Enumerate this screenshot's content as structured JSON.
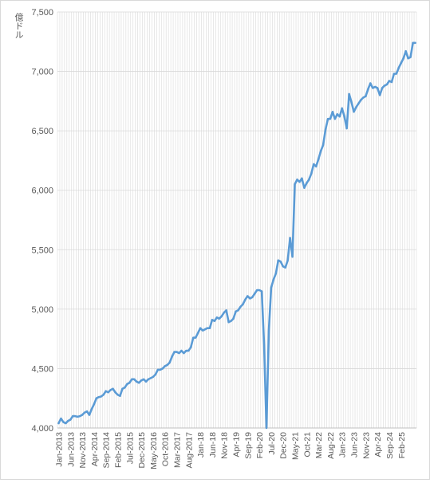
{
  "chart_data": {
    "type": "line",
    "ylabel": "億ドル",
    "ylim": [
      4000,
      7500
    ],
    "yticks": [
      4000,
      4500,
      5000,
      5500,
      6000,
      6500,
      7000,
      7500
    ],
    "ytick_labels": [
      "4,000",
      "4,500",
      "5,000",
      "5,500",
      "6,000",
      "6,500",
      "7,000",
      "7,500"
    ],
    "xtick_labels": [
      "Jan-2013",
      "Jun-2013",
      "Nov-2013",
      "Apr-2014",
      "Sep-2014",
      "Feb-2015",
      "Jul-2015",
      "Dec-2015",
      "May-2016",
      "Oct-2016",
      "Mar-2017",
      "Aug-2017",
      "Jan-18",
      "Jun-18",
      "Nov-18",
      "Apr-19",
      "Sep-19",
      "Feb-20",
      "Jul-20",
      "Dec-20",
      "May-21",
      "Oct-21",
      "Mar-22",
      "Aug-22",
      "Jan-23",
      "Jun-23",
      "Nov-23",
      "Apr-24",
      "Sep-24",
      "Feb-25"
    ],
    "x_start": "Jan-2013",
    "x_end": "Jun-25",
    "x_step": "monthly",
    "grid": "vertical-minor-and-horizontal",
    "line_color": "#5b9bd5",
    "values": [
      4040,
      4080,
      4050,
      4040,
      4060,
      4070,
      4100,
      4100,
      4095,
      4100,
      4110,
      4130,
      4140,
      4110,
      4160,
      4200,
      4250,
      4260,
      4265,
      4280,
      4310,
      4300,
      4320,
      4330,
      4300,
      4280,
      4270,
      4330,
      4340,
      4370,
      4380,
      4410,
      4410,
      4390,
      4380,
      4400,
      4410,
      4390,
      4410,
      4420,
      4430,
      4450,
      4490,
      4490,
      4500,
      4520,
      4530,
      4550,
      4600,
      4640,
      4640,
      4630,
      4650,
      4630,
      4650,
      4650,
      4680,
      4760,
      4760,
      4800,
      4840,
      4820,
      4830,
      4840,
      4840,
      4910,
      4900,
      4930,
      4920,
      4940,
      4970,
      4990,
      4890,
      4900,
      4920,
      4980,
      4990,
      5020,
      5040,
      5080,
      5110,
      5090,
      5100,
      5130,
      5160,
      5160,
      5150,
      4700,
      4000,
      4820,
      5180,
      5250,
      5300,
      5410,
      5400,
      5360,
      5350,
      5410,
      5600,
      5440,
      6050,
      6090,
      6070,
      6100,
      6020,
      6060,
      6090,
      6140,
      6220,
      6200,
      6260,
      6330,
      6380,
      6510,
      6600,
      6600,
      6660,
      6600,
      6640,
      6620,
      6690,
      6620,
      6520,
      6810,
      6740,
      6660,
      6700,
      6730,
      6760,
      6780,
      6790,
      6850,
      6900,
      6860,
      6870,
      6860,
      6800,
      6860,
      6880,
      6890,
      6920,
      6910,
      6980,
      6980,
      7030,
      7070,
      7110,
      7170,
      7110,
      7120,
      7240,
      7240
    ]
  }
}
